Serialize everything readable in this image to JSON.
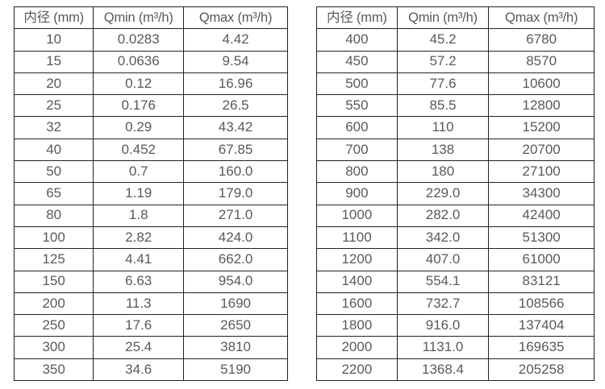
{
  "page": {
    "background": "#ffffff",
    "text_color": "#595959",
    "border_color": "#222222"
  },
  "tables": [
    {
      "name": "flow-range-table-dn10-350",
      "headers": [
        "内径 (mm)",
        "Qmin (m³/h)",
        "Qmax (m³/h)"
      ],
      "rows": [
        [
          "10",
          "0.0283",
          "4.42"
        ],
        [
          "15",
          "0.0636",
          "9.54"
        ],
        [
          "20",
          "0.12",
          "16.96"
        ],
        [
          "25",
          "0.176",
          "26.5"
        ],
        [
          "32",
          "0.29",
          "43.42"
        ],
        [
          "40",
          "0.452",
          "67.85"
        ],
        [
          "50",
          "0.7",
          "160.0"
        ],
        [
          "65",
          "1.19",
          "179.0"
        ],
        [
          "80",
          "1.8",
          "271.0"
        ],
        [
          "100",
          "2.82",
          "424.0"
        ],
        [
          "125",
          "4.41",
          "662.0"
        ],
        [
          "150",
          "6.63",
          "954.0"
        ],
        [
          "200",
          "11.3",
          "1690"
        ],
        [
          "250",
          "17.6",
          "2650"
        ],
        [
          "300",
          "25.4",
          "3810"
        ],
        [
          "350",
          "34.6",
          "5190"
        ]
      ]
    },
    {
      "name": "flow-range-table-dn400-2200",
      "headers": [
        "内径 (mm)",
        "Qmin (m³/h)",
        "Qmax (m³/h)"
      ],
      "rows": [
        [
          "400",
          "45.2",
          "6780"
        ],
        [
          "450",
          "57.2",
          "8570"
        ],
        [
          "500",
          "77.6",
          "10600"
        ],
        [
          "550",
          "85.5",
          "12800"
        ],
        [
          "600",
          "110",
          "15200"
        ],
        [
          "700",
          "138",
          "20700"
        ],
        [
          "800",
          "180",
          "27100"
        ],
        [
          "900",
          "229.0",
          "34300"
        ],
        [
          "1000",
          "282.0",
          "42400"
        ],
        [
          "1100",
          "342.0",
          "51300"
        ],
        [
          "1200",
          "407.0",
          "61000"
        ],
        [
          "1400",
          "554.1",
          "83121"
        ],
        [
          "1600",
          "732.7",
          "108566"
        ],
        [
          "1800",
          "916.0",
          "137404"
        ],
        [
          "2000",
          "1131.0",
          "169635"
        ],
        [
          "2200",
          "1368.4",
          "205258"
        ]
      ]
    }
  ]
}
